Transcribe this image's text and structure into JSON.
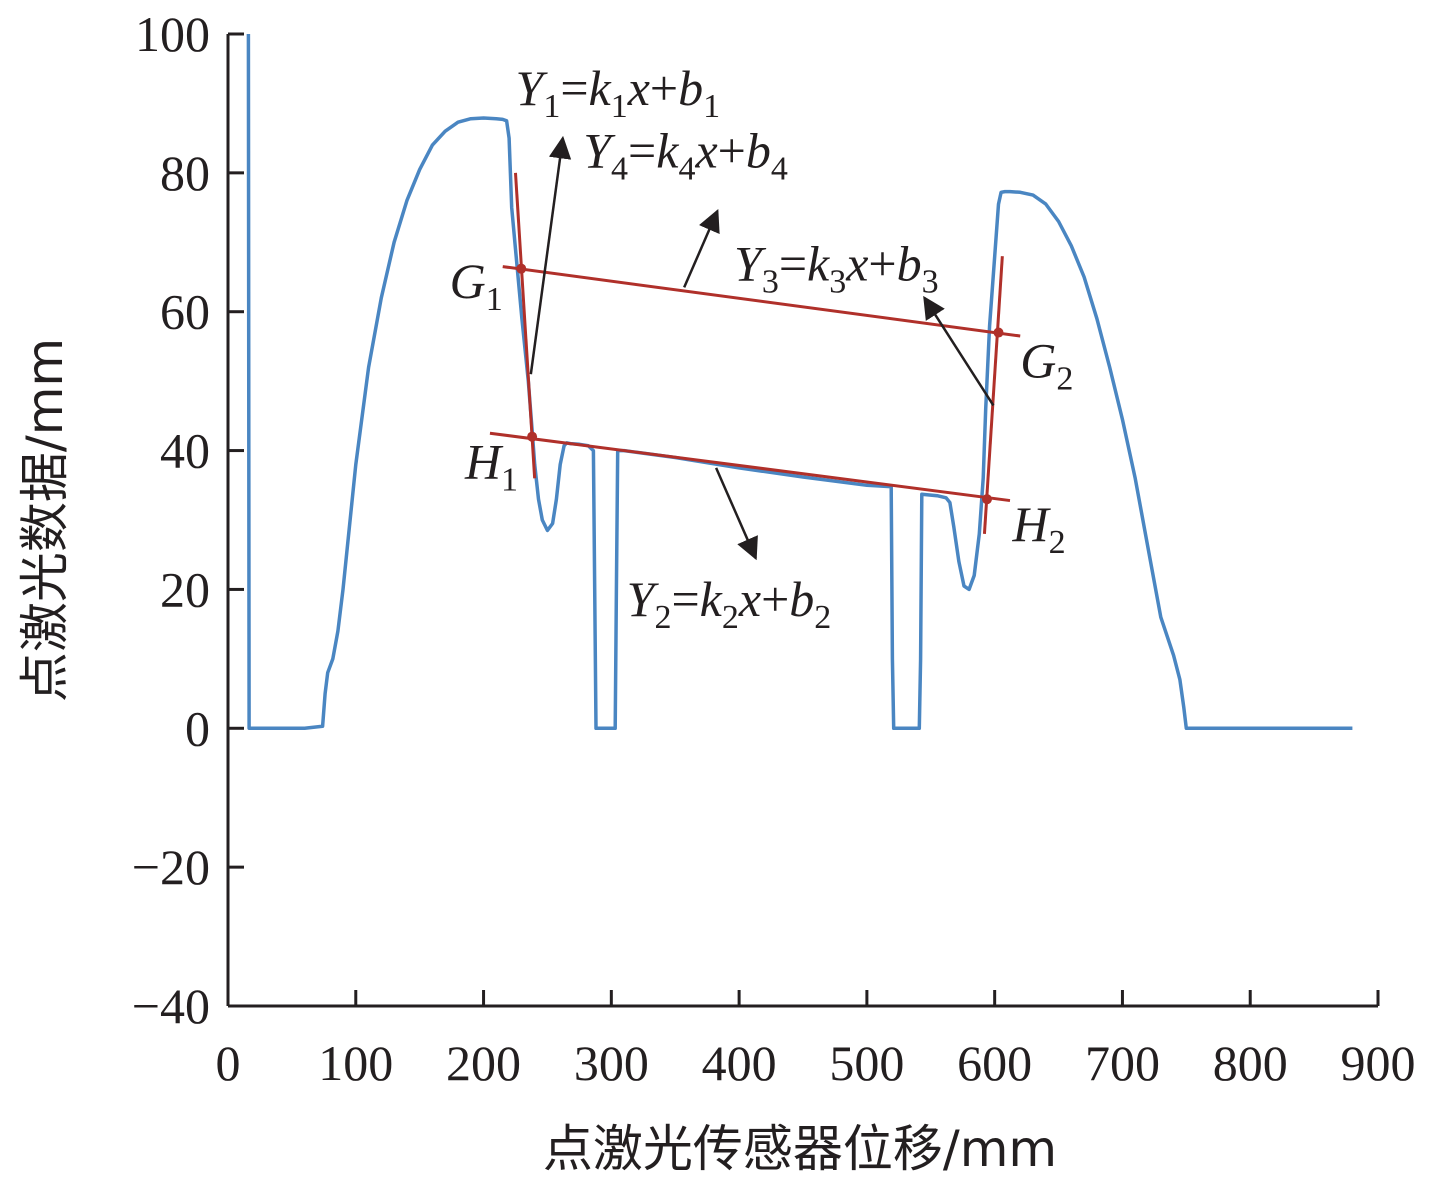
{
  "chart_data": {
    "type": "line",
    "title": "",
    "xlabel": "点激光传感器位移/mm",
    "ylabel": "点激光数据/mm",
    "xlim": [
      0,
      900
    ],
    "ylim": [
      -40,
      100
    ],
    "xticks": [
      0,
      100,
      200,
      300,
      400,
      500,
      600,
      700,
      800,
      900
    ],
    "yticks": [
      -40,
      -20,
      0,
      20,
      40,
      60,
      80,
      100
    ],
    "ytick_labels": [
      "−40",
      "−20",
      "0",
      "20",
      "40",
      "60",
      "80",
      "100"
    ],
    "grid": false,
    "legend": "none",
    "colors": {
      "profile": "#4a86c2",
      "fit": "#b0302a",
      "axis": "#231f20",
      "text": "#231f20"
    },
    "series": [
      {
        "x": [
          16,
          16.5,
          17,
          20,
          40,
          60,
          74,
          76,
          78,
          82,
          86,
          90,
          95,
          100,
          110,
          120,
          130,
          140,
          150,
          160,
          170,
          180,
          190,
          200,
          210,
          215,
          218,
          220,
          222,
          225,
          230,
          235,
          238,
          240,
          243,
          246,
          250,
          254,
          257,
          260,
          263,
          265,
          268,
          275,
          282,
          286,
          287,
          288,
          298,
          303,
          304,
          305,
          310,
          350,
          400,
          450,
          500,
          519,
          520,
          521,
          541,
          542,
          543,
          555,
          562,
          565,
          568,
          572,
          576,
          580,
          584,
          588,
          591,
          593,
          596,
          600,
          603,
          605,
          608,
          612,
          620,
          630,
          640,
          650,
          660,
          670,
          680,
          690,
          700,
          710,
          720,
          730,
          740,
          745,
          748,
          750,
          752,
          760,
          800,
          880
        ],
        "y": [
          100,
          0,
          0,
          0,
          0,
          0,
          0.3,
          5,
          8,
          10,
          14,
          20,
          29,
          38,
          52,
          62,
          70,
          76,
          80.5,
          84,
          86,
          87.3,
          87.8,
          87.9,
          87.8,
          87.7,
          87.5,
          85,
          75,
          69,
          59,
          50,
          43,
          38,
          33,
          30,
          28.5,
          29.5,
          33,
          38,
          40.7,
          41.1,
          41,
          40.9,
          40.7,
          40,
          20,
          0,
          0,
          0,
          20,
          40,
          40,
          39,
          37.5,
          36.2,
          35,
          34.8,
          10,
          0,
          0,
          10,
          33.7,
          33.5,
          33.2,
          32.5,
          29,
          24,
          20.5,
          20,
          22,
          28,
          36,
          46,
          58,
          68,
          75.5,
          77.2,
          77.3,
          77.3,
          77.2,
          76.8,
          75.5,
          73,
          69.5,
          65,
          59,
          52,
          44.5,
          36,
          26,
          16,
          10.5,
          7,
          3,
          0,
          0,
          0,
          0,
          0
        ]
      }
    ],
    "fit_lines": [
      {
        "x1": 215,
        "y1": 66.5,
        "x2": 620,
        "y2": 56.5
      },
      {
        "x1": 205,
        "y1": 42.5,
        "x2": 612,
        "y2": 32.8
      },
      {
        "x1": 225,
        "y1": 80,
        "x2": 240,
        "y2": 36
      },
      {
        "x1": 606,
        "y1": 68,
        "x2": 592,
        "y2": 28
      }
    ],
    "points": [
      {
        "label": "G",
        "sub": "1",
        "x": 229.5,
        "y": 66.2,
        "lx": 215,
        "ly": 62,
        "anchor": "end"
      },
      {
        "label": "G",
        "sub": "2",
        "x": 603,
        "y": 57,
        "lx": 620,
        "ly": 50.5,
        "anchor": "start"
      },
      {
        "label": "H",
        "sub": "1",
        "x": 238,
        "y": 42,
        "lx": 227,
        "ly": 36,
        "anchor": "end"
      },
      {
        "label": "H",
        "sub": "2",
        "x": 594,
        "y": 33,
        "lx": 614,
        "ly": 27,
        "anchor": "start"
      }
    ],
    "annotations": [
      {
        "label": "Y",
        "sub": "1",
        "k": "k",
        "b": "b",
        "x": 225,
        "y": 89.8,
        "from": [
          237,
          51
        ],
        "to": [
          262,
          85
        ]
      },
      {
        "label": "Y",
        "sub": "4",
        "k": "k",
        "b": "b",
        "x": 278,
        "y": 80.8,
        "from": [
          357,
          63.5
        ],
        "to": [
          383,
          74.5
        ]
      },
      {
        "label": "Y",
        "sub": "3",
        "k": "k",
        "b": "b",
        "x": 396,
        "y": 64.5,
        "from": [
          599,
          46.5
        ],
        "to": [
          545,
          62
        ]
      },
      {
        "label": "Y",
        "sub": "2",
        "k": "k",
        "b": "b",
        "x": 312,
        "y": 16.2,
        "from": [
          382,
          37.5
        ],
        "to": [
          413,
          24.5
        ]
      }
    ]
  }
}
